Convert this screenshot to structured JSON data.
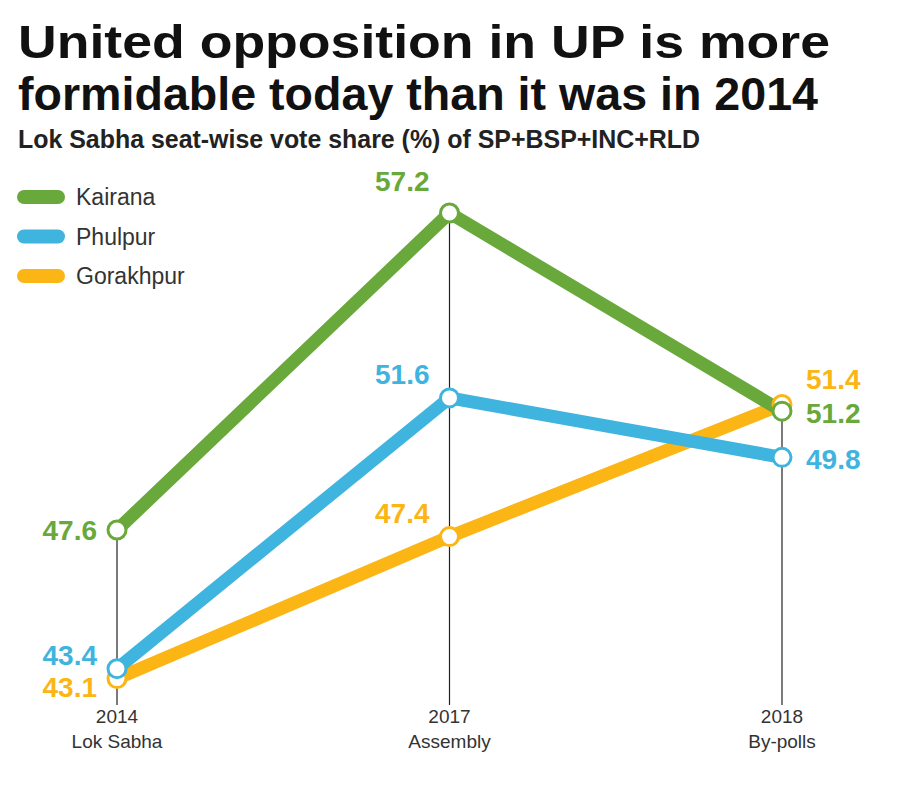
{
  "chart_data": {
    "type": "line",
    "title": "United opposition in UP is more\nformidable today than it was in 2014",
    "subtitle": "Lok Sabha seat-wise vote share (%) of SP+BSP+INC+RLD",
    "categories": [
      "2014\nLok Sabha",
      "2017\nAssembly",
      "2018\nBy-polls"
    ],
    "series": [
      {
        "name": "Kairana",
        "color": "#69a83a",
        "marker": "circle",
        "values": [
          47.6,
          57.2,
          51.2
        ]
      },
      {
        "name": "Phulpur",
        "color": "#3fb4df",
        "marker": "circle",
        "values": [
          43.4,
          51.6,
          49.8
        ]
      },
      {
        "name": "Gorakhpur",
        "color": "#fbb515",
        "marker": "circle",
        "values": [
          43.1,
          47.4,
          51.4
        ]
      }
    ],
    "ylim": [
      42.3,
      58.2
    ],
    "tick_labels": "x",
    "data_labels": true,
    "legend": "upper left",
    "grid": false
  }
}
